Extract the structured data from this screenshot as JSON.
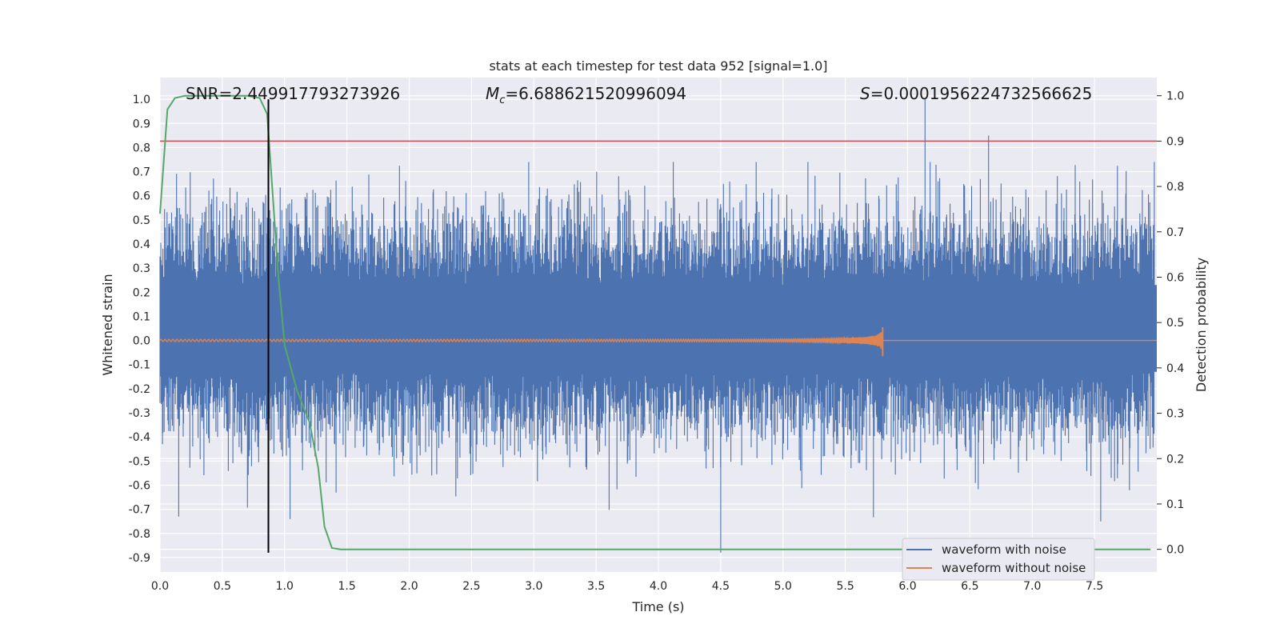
{
  "chart_data": {
    "type": "line",
    "title": "stats at each timestep for test data 952 [signal=1.0]",
    "xlabel": "Time (s)",
    "ylabel": "Whitened strain",
    "ylabel_right": "Detection probability",
    "xlim": [
      0.0,
      8.0
    ],
    "ylim": [
      -0.96,
      1.09
    ],
    "ylim_right": [
      -0.05,
      1.04
    ],
    "x_ticks": [
      "0.0",
      "0.5",
      "1.0",
      "1.5",
      "2.0",
      "2.5",
      "3.0",
      "3.5",
      "4.0",
      "4.5",
      "5.0",
      "5.5",
      "6.0",
      "6.5",
      "7.0",
      "7.5"
    ],
    "y_ticks": [
      "1.0",
      "0.9",
      "0.8",
      "0.7",
      "0.6",
      "0.5",
      "0.4",
      "0.3",
      "0.2",
      "0.1",
      "0.0",
      "-0.1",
      "-0.2",
      "-0.3",
      "-0.4",
      "-0.5",
      "-0.6",
      "-0.7",
      "-0.8",
      "-0.9"
    ],
    "y_ticks_right": [
      "1.0",
      "0.9",
      "0.8",
      "0.7",
      "0.6",
      "0.5",
      "0.4",
      "0.3",
      "0.2",
      "0.1",
      "0.0"
    ],
    "grid": true,
    "legend_position": "bottom-right",
    "annotations": {
      "snr": "SNR=2.449917793273926",
      "mc_symbol": "M",
      "mc_sub": "c",
      "mc_value": "=6.688621520996094",
      "s_symbol": "S",
      "s_value": "=0.0001956224732566625"
    },
    "series": [
      {
        "name": "waveform with noise",
        "color": "#4c72b0",
        "band_low": -0.13,
        "band_high": 0.23,
        "peak_max": 1.0,
        "peak_min": -0.88
      },
      {
        "name": "waveform without noise",
        "color": "#dd8452",
        "merger_time": 5.8,
        "amplitude_start": 0.004,
        "amplitude_peak": 0.045
      }
    ],
    "detection_probability": {
      "color": "#55a868",
      "x": [
        0.0,
        0.06,
        0.12,
        0.2,
        0.3,
        0.4,
        0.5,
        0.6,
        0.7,
        0.8,
        0.86,
        0.9,
        0.95,
        1.0,
        1.05,
        1.1,
        1.2,
        1.27,
        1.32,
        1.38,
        1.45,
        1.5,
        2.0,
        3.0,
        4.0,
        5.0,
        6.0,
        7.0,
        7.95
      ],
      "y": [
        0.74,
        0.97,
        0.995,
        1.0,
        1.0,
        1.0,
        1.0,
        1.0,
        1.0,
        0.995,
        0.96,
        0.8,
        0.6,
        0.45,
        0.4,
        0.35,
        0.28,
        0.18,
        0.05,
        0.003,
        0.0,
        0.0,
        0.0,
        0.0,
        0.0,
        0.0,
        0.0,
        0.0,
        0.0
      ]
    },
    "threshold": {
      "value": 0.9,
      "axis": "right",
      "color": "#c44e52"
    },
    "marker_time": {
      "value": 0.87,
      "color": "#000000",
      "y_top": 1.0,
      "y_bottom": -0.88
    }
  }
}
